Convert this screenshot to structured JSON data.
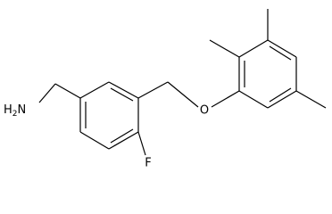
{
  "atoms": {
    "amine": {
      "h": "H",
      "subscript": "2",
      "n": "N"
    },
    "oxygen": "O",
    "fluorine": "F"
  }
}
